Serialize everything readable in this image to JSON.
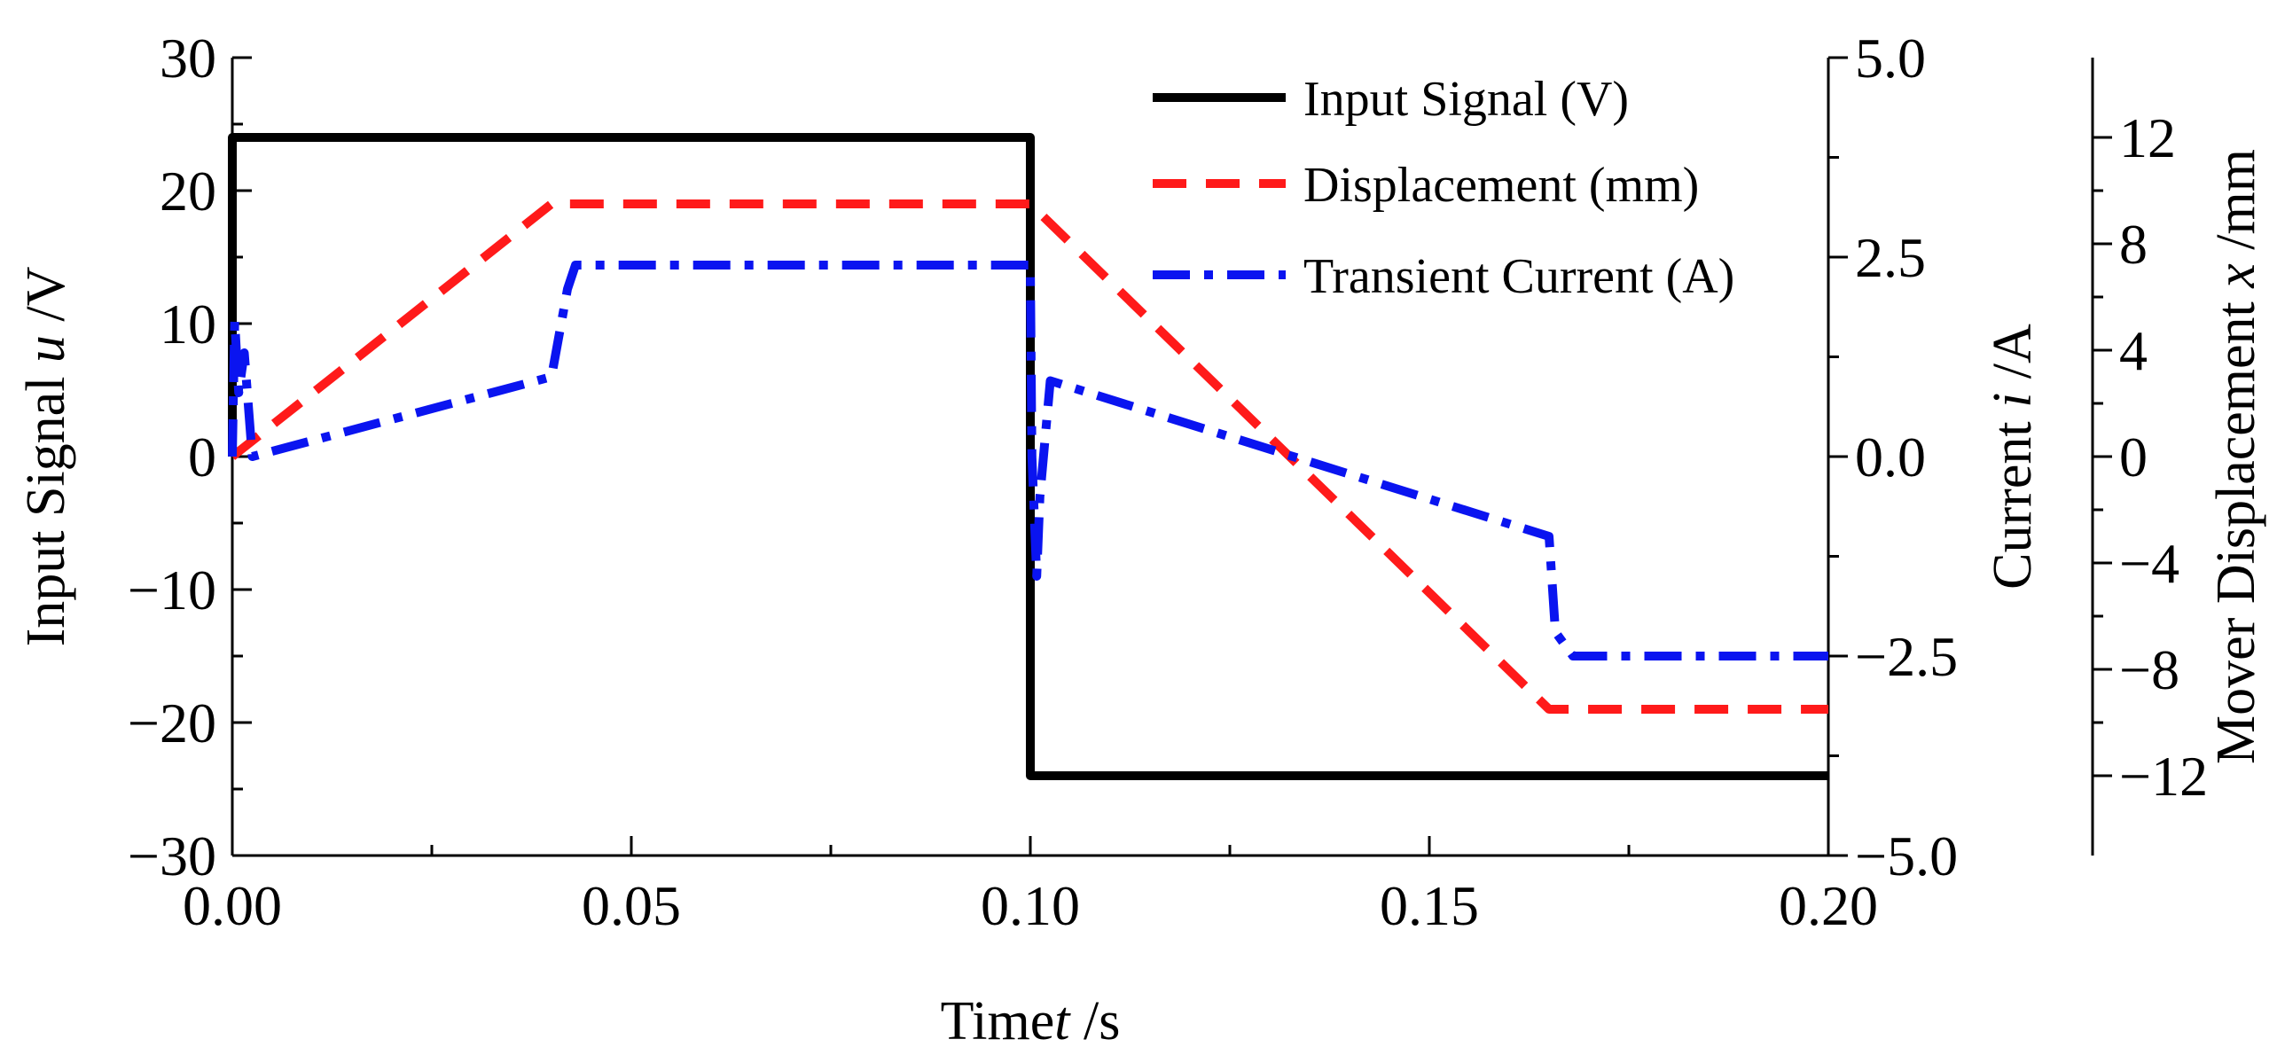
{
  "chart_data": {
    "type": "line",
    "xlabel": {
      "pre": "Time",
      "var": "t",
      "unit": " /s"
    },
    "xlim": [
      0,
      0.2
    ],
    "xticks": [
      0,
      0.05,
      0.1,
      0.15,
      0.2
    ],
    "xtick_labels": [
      "0.00",
      "0.05",
      "0.10",
      "0.15",
      "0.20"
    ],
    "axes": {
      "left": {
        "label": {
          "pre": "Input Signal ",
          "var": "u",
          "unit": " /V"
        },
        "lim": [
          -30,
          30
        ],
        "ticks": [
          -30,
          -20,
          -10,
          0,
          10,
          20,
          30
        ],
        "tick_labels": [
          "−30",
          "−20",
          "−10",
          "0",
          "10",
          "20",
          "30"
        ]
      },
      "right1": {
        "label": {
          "pre": "Current ",
          "var": "i",
          "unit": " /A"
        },
        "lim": [
          -5,
          5
        ],
        "ticks": [
          -5,
          -2.5,
          0,
          2.5,
          5
        ],
        "tick_labels": [
          "−5.0",
          "−2.5",
          "0.0",
          "2.5",
          "5.0"
        ]
      },
      "right2": {
        "label": {
          "pre": "Mover Displacement ",
          "var": "x",
          "unit": " /mm"
        },
        "lim": [
          -15,
          15
        ],
        "ticks": [
          -12,
          -8,
          -4,
          0,
          4,
          8,
          12
        ],
        "tick_labels": [
          "−12",
          "−8",
          "−4",
          "0",
          "4",
          "8",
          "12"
        ]
      }
    },
    "legend_position": "top-right",
    "series": [
      {
        "name": "Input Signal (V)",
        "axis": "left",
        "color": "#000000",
        "dash": "solid",
        "x": [
          0,
          0,
          0.1,
          0.1,
          0.2
        ],
        "y": [
          0,
          24,
          24,
          -24,
          -24
        ]
      },
      {
        "name": "Displacement (mm)",
        "axis": "right2",
        "color": "#ff1a1a",
        "dash": "dash",
        "x": [
          0,
          0.04,
          0.1,
          0.165,
          0.2
        ],
        "y": [
          0,
          9.5,
          9.5,
          -9.5,
          -9.5
        ]
      },
      {
        "name": "Transient Current (A)",
        "axis": "right1",
        "color": "#0a14f0",
        "dash": "dashdot",
        "x": [
          0,
          0.0003,
          0.0008,
          0.0015,
          0.0025,
          0.04,
          0.042,
          0.043,
          0.1,
          0.1002,
          0.1008,
          0.1012,
          0.1025,
          0.165,
          0.1658,
          0.168,
          0.2
        ],
        "y": [
          0,
          1.7,
          0.8,
          1.3,
          0.0,
          1.0,
          2.1,
          2.4,
          2.4,
          0.0,
          -1.5,
          -0.5,
          0.95,
          -1.0,
          -2.2,
          -2.5,
          -2.5
        ]
      }
    ]
  }
}
